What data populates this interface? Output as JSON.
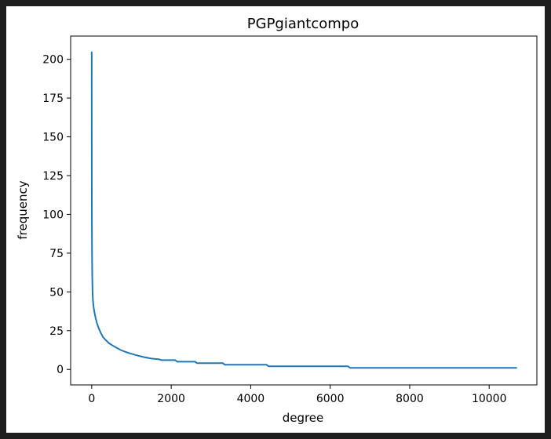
{
  "chart_data": {
    "type": "line",
    "title": "PGPgiantcompo",
    "xlabel": "degree",
    "ylabel": "frequency",
    "xlim": [
      -530,
      11200
    ],
    "ylim": [
      -10,
      215
    ],
    "xticks": [
      0,
      2000,
      4000,
      6000,
      8000,
      10000
    ],
    "yticks": [
      0,
      25,
      50,
      75,
      100,
      125,
      150,
      175,
      200
    ],
    "grid": false,
    "color": "#1f77b4",
    "series": [
      {
        "x": [
          0,
          1,
          2,
          4,
          7,
          10,
          15,
          22,
          30,
          40,
          55,
          75,
          100,
          130,
          170,
          220,
          280,
          350,
          430,
          520,
          620,
          730,
          850,
          980,
          1120,
          1300,
          1500,
          1700,
          1750,
          2100,
          2150,
          2600,
          2650,
          3300,
          3350,
          4400,
          4450,
          6450,
          6500,
          10700
        ],
        "y": [
          205,
          160,
          130,
          100,
          80,
          68,
          58,
          50,
          45,
          42,
          39,
          36,
          33,
          30,
          27,
          24,
          21,
          19,
          17,
          15.5,
          14,
          12.5,
          11.3,
          10.2,
          9.2,
          8,
          7,
          6.5,
          6,
          6,
          5,
          5,
          4,
          4,
          3,
          3,
          2,
          2,
          1,
          1
        ]
      }
    ]
  }
}
